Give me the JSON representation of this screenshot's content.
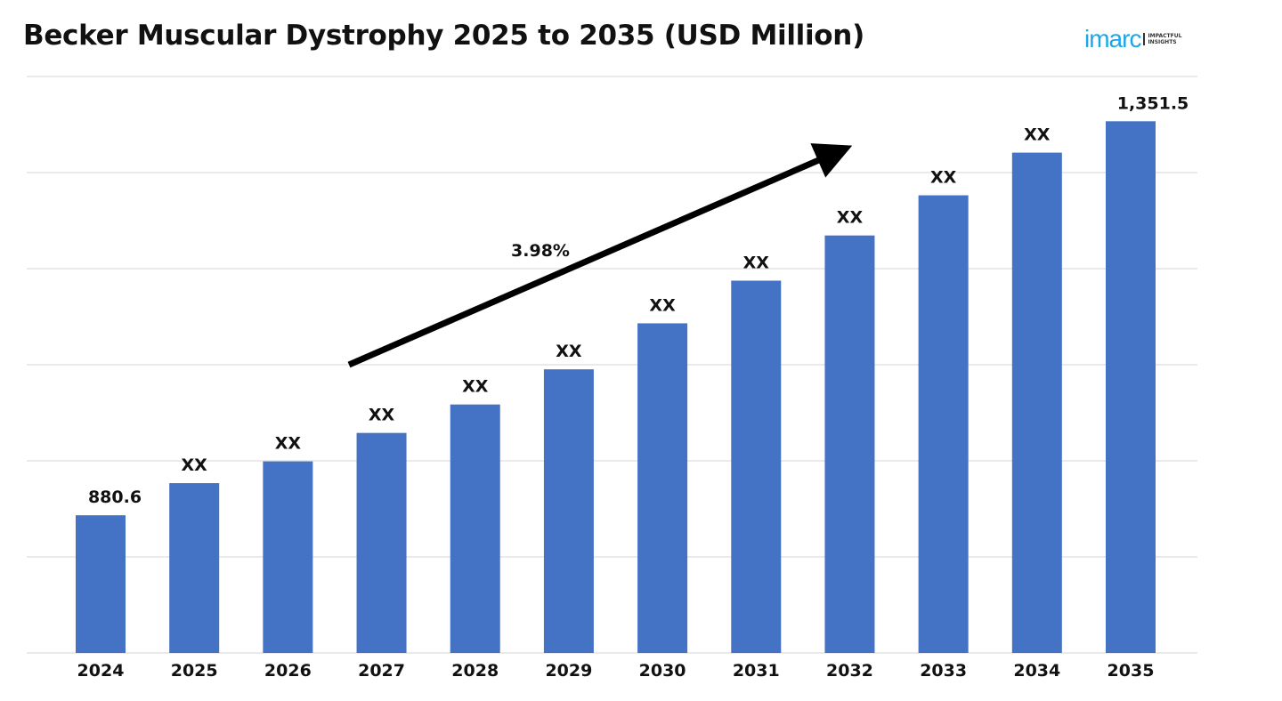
{
  "chart_data": {
    "type": "bar",
    "title": "Becker Muscular Dystrophy 2025 to 2035 (USD Million)",
    "xlabel": "",
    "ylabel": "",
    "categories": [
      "2024",
      "2025",
      "2026",
      "2027",
      "2028",
      "2029",
      "2030",
      "2031",
      "2032",
      "2033",
      "2034",
      "2035"
    ],
    "values": [
      880.6,
      919,
      945,
      979,
      1013,
      1055,
      1110,
      1161,
      1215,
      1263,
      1314,
      1351.5
    ],
    "data_labels": [
      "880.6",
      "XX",
      "XX",
      "XX",
      "XX",
      "XX",
      "XX",
      "XX",
      "XX",
      "XX",
      "XX",
      "1,351.5"
    ],
    "ylim": [
      716,
      1405
    ],
    "grid": true,
    "gridline_count": 7,
    "bar_color": "#4472C4",
    "annotation": {
      "text": "3.98%",
      "type": "trend-arrow"
    }
  },
  "logo": {
    "text": "imarc",
    "tagline": "IMPACTFUL INSIGHTS"
  }
}
